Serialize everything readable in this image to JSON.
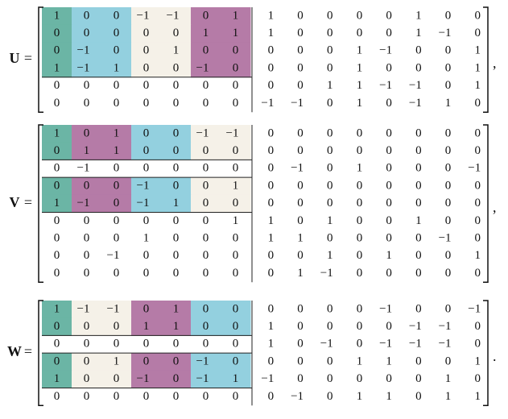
{
  "matrices": [
    {
      "name": "U",
      "symbol": "=",
      "punctuation": ",",
      "rows": [
        [
          "1",
          "0",
          "0",
          "−1",
          "−1",
          "0",
          "1",
          "1",
          "0",
          "0",
          "0",
          "0",
          "1",
          "0",
          "0"
        ],
        [
          "0",
          "0",
          "0",
          "0",
          "0",
          "1",
          "1",
          "1",
          "0",
          "0",
          "0",
          "0",
          "1",
          "−1",
          "0"
        ],
        [
          "0",
          "−1",
          "0",
          "0",
          "1",
          "0",
          "0",
          "0",
          "0",
          "0",
          "1",
          "−1",
          "0",
          "0",
          "1"
        ],
        [
          "1",
          "−1",
          "1",
          "0",
          "0",
          "−1",
          "0",
          "0",
          "0",
          "0",
          "1",
          "0",
          "0",
          "0",
          "1"
        ],
        [
          "0",
          "0",
          "0",
          "0",
          "0",
          "0",
          "0",
          "0",
          "0",
          "1",
          "1",
          "−1",
          "−1",
          "0",
          "1"
        ],
        [
          "0",
          "0",
          "0",
          "0",
          "0",
          "0",
          "0",
          "−1",
          "−1",
          "0",
          "1",
          "0",
          "−1",
          "1",
          "0"
        ]
      ]
    },
    {
      "name": "V",
      "symbol": "=",
      "punctuation": ",",
      "rows": [
        [
          "1",
          "0",
          "1",
          "0",
          "0",
          "−1",
          "−1",
          "0",
          "0",
          "0",
          "0",
          "0",
          "0",
          "0",
          "0"
        ],
        [
          "0",
          "1",
          "1",
          "0",
          "0",
          "0",
          "0",
          "0",
          "0",
          "0",
          "0",
          "0",
          "0",
          "0",
          "0"
        ],
        [
          "0",
          "−1",
          "0",
          "0",
          "0",
          "0",
          "0",
          "0",
          "−1",
          "0",
          "1",
          "0",
          "0",
          "0",
          "−1"
        ],
        [
          "0",
          "0",
          "0",
          "−1",
          "0",
          "0",
          "1",
          "0",
          "0",
          "0",
          "0",
          "0",
          "0",
          "0",
          "0"
        ],
        [
          "1",
          "−1",
          "0",
          "−1",
          "1",
          "0",
          "0",
          "0",
          "0",
          "0",
          "0",
          "0",
          "0",
          "0",
          "0"
        ],
        [
          "0",
          "0",
          "0",
          "0",
          "0",
          "0",
          "1",
          "1",
          "0",
          "1",
          "0",
          "0",
          "1",
          "0",
          "0"
        ],
        [
          "0",
          "0",
          "0",
          "1",
          "0",
          "0",
          "0",
          "1",
          "1",
          "0",
          "0",
          "0",
          "0",
          "−1",
          "0"
        ],
        [
          "0",
          "0",
          "−1",
          "0",
          "0",
          "0",
          "0",
          "0",
          "0",
          "1",
          "0",
          "1",
          "0",
          "0",
          "1"
        ],
        [
          "0",
          "0",
          "0",
          "0",
          "0",
          "0",
          "0",
          "0",
          "1",
          "−1",
          "0",
          "0",
          "0",
          "0",
          "0"
        ]
      ]
    },
    {
      "name": "W",
      "symbol": "=",
      "punctuation": ".",
      "rows": [
        [
          "1",
          "−1",
          "−1",
          "0",
          "1",
          "0",
          "0",
          "0",
          "0",
          "0",
          "0",
          "−1",
          "0",
          "0",
          "−1"
        ],
        [
          "0",
          "0",
          "0",
          "1",
          "1",
          "0",
          "0",
          "1",
          "0",
          "0",
          "0",
          "0",
          "−1",
          "−1",
          "0"
        ],
        [
          "0",
          "0",
          "0",
          "0",
          "0",
          "0",
          "0",
          "1",
          "0",
          "−1",
          "0",
          "−1",
          "−1",
          "−1",
          "0"
        ],
        [
          "0",
          "0",
          "1",
          "0",
          "0",
          "−1",
          "0",
          "0",
          "0",
          "0",
          "1",
          "1",
          "0",
          "0",
          "1"
        ],
        [
          "1",
          "0",
          "0",
          "−1",
          "0",
          "−1",
          "1",
          "−1",
          "0",
          "0",
          "0",
          "0",
          "0",
          "1",
          "0"
        ],
        [
          "0",
          "0",
          "0",
          "0",
          "0",
          "0",
          "0",
          "0",
          "−1",
          "0",
          "1",
          "1",
          "0",
          "1",
          "1"
        ]
      ]
    }
  ]
}
